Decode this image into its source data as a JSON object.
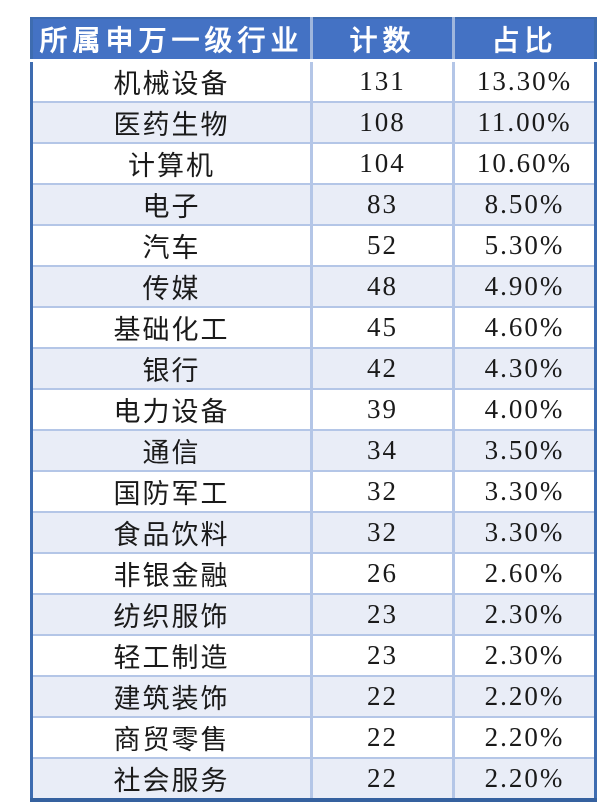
{
  "table": {
    "columns": [
      {
        "label": "所属申万一级行业"
      },
      {
        "label": "计数"
      },
      {
        "label": "占比"
      }
    ],
    "rows": [
      {
        "industry": "机械设备",
        "count": "131",
        "share": "13.30%"
      },
      {
        "industry": "医药生物",
        "count": "108",
        "share": "11.00%"
      },
      {
        "industry": "计算机",
        "count": "104",
        "share": "10.60%"
      },
      {
        "industry": "电子",
        "count": "83",
        "share": "8.50%"
      },
      {
        "industry": "汽车",
        "count": "52",
        "share": "5.30%"
      },
      {
        "industry": "传媒",
        "count": "48",
        "share": "4.90%"
      },
      {
        "industry": "基础化工",
        "count": "45",
        "share": "4.60%"
      },
      {
        "industry": "银行",
        "count": "42",
        "share": "4.30%"
      },
      {
        "industry": "电力设备",
        "count": "39",
        "share": "4.00%"
      },
      {
        "industry": "通信",
        "count": "34",
        "share": "3.50%"
      },
      {
        "industry": "国防军工",
        "count": "32",
        "share": "3.30%"
      },
      {
        "industry": "食品饮料",
        "count": "32",
        "share": "3.30%"
      },
      {
        "industry": "非银金融",
        "count": "26",
        "share": "2.60%"
      },
      {
        "industry": "纺织服饰",
        "count": "23",
        "share": "2.30%"
      },
      {
        "industry": "轻工制造",
        "count": "23",
        "share": "2.30%"
      },
      {
        "industry": "建筑装饰",
        "count": "22",
        "share": "2.20%"
      },
      {
        "industry": "商贸零售",
        "count": "22",
        "share": "2.20%"
      },
      {
        "industry": "社会服务",
        "count": "22",
        "share": "2.20%"
      }
    ],
    "colors": {
      "header_bg": "#4472C4",
      "header_text": "#FFFFFF",
      "header_grid": "#9FB6DD",
      "header_separator": "#FFFFFF",
      "row_bg": "#FFFFFF",
      "row_alt_bg": "#E9EDF7",
      "grid_line": "#B4C6E7",
      "outer_border": "#3E6CB0",
      "outer_border_bottom": "#35619F",
      "text": "#1A1A1A"
    }
  },
  "chart_data": {
    "type": "table",
    "title": "",
    "columns": [
      "所属申万一级行业",
      "计数",
      "占比"
    ],
    "categories": [
      "机械设备",
      "医药生物",
      "计算机",
      "电子",
      "汽车",
      "传媒",
      "基础化工",
      "银行",
      "电力设备",
      "通信",
      "国防军工",
      "食品饮料",
      "非银金融",
      "纺织服饰",
      "轻工制造",
      "建筑装饰",
      "商贸零售",
      "社会服务"
    ],
    "series": [
      {
        "name": "计数",
        "values": [
          131,
          108,
          104,
          83,
          52,
          48,
          45,
          42,
          39,
          34,
          32,
          32,
          26,
          23,
          23,
          22,
          22,
          22
        ]
      },
      {
        "name": "占比",
        "values": [
          "13.30%",
          "11.00%",
          "10.60%",
          "8.50%",
          "5.30%",
          "4.90%",
          "4.60%",
          "4.30%",
          "4.00%",
          "3.50%",
          "3.30%",
          "3.30%",
          "2.60%",
          "2.30%",
          "2.30%",
          "2.20%",
          "2.20%",
          "2.20%"
        ]
      }
    ]
  }
}
